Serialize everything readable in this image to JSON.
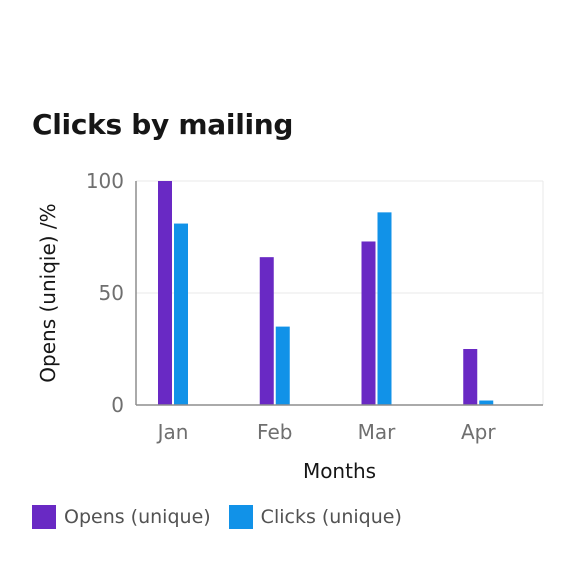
{
  "chart_data": {
    "type": "bar",
    "title": "Clicks by mailing",
    "xlabel": "Months",
    "ylabel": "Opens (uniqie) /%",
    "categories": [
      "Jan",
      "Feb",
      "Mar",
      "Apr"
    ],
    "series": [
      {
        "name": "Opens (unique)",
        "color": "#6929c4",
        "values": [
          100,
          66,
          73,
          25
        ]
      },
      {
        "name": "Clicks (unique)",
        "color": "#1192e8",
        "values": [
          81,
          35,
          86,
          2
        ]
      }
    ],
    "ylim": [
      0,
      100
    ],
    "yticks": [
      "0",
      "50",
      "100"
    ],
    "grid": true,
    "legend_position": "bottom-left"
  }
}
